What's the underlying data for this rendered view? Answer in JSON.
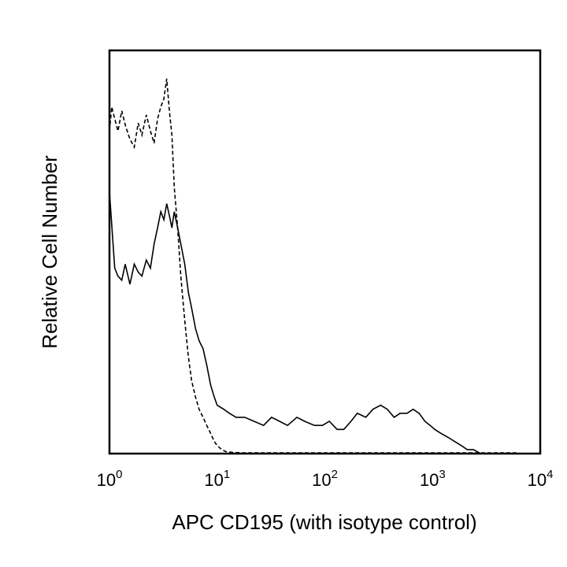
{
  "chart_data": {
    "type": "line",
    "title": "",
    "xlabel": "APC CD195 (with isotype control)",
    "ylabel": "Relative Cell Number",
    "x_scale": "log",
    "xlim": [
      1,
      10000
    ],
    "ylim": [
      0,
      100
    ],
    "grid": false,
    "x_ticks": [
      {
        "base": "10",
        "exp": "0",
        "value": 1
      },
      {
        "base": "10",
        "exp": "1",
        "value": 10
      },
      {
        "base": "10",
        "exp": "2",
        "value": 100
      },
      {
        "base": "10",
        "exp": "3",
        "value": 1000
      },
      {
        "base": "10",
        "exp": "4",
        "value": 10000
      }
    ],
    "series": [
      {
        "style": "solid",
        "color": "#000000",
        "x": [
          1.0,
          1.06,
          1.12,
          1.2,
          1.3,
          1.4,
          1.55,
          1.7,
          1.85,
          2.0,
          2.2,
          2.4,
          2.6,
          2.8,
          3.0,
          3.2,
          3.4,
          3.6,
          3.8,
          4.0,
          4.3,
          4.6,
          5.0,
          5.4,
          5.8,
          6.3,
          6.8,
          7.4,
          8.0,
          8.7,
          9.4,
          10.0,
          11.5,
          13.0,
          15.0,
          18.0,
          22.0,
          27.0,
          32.0,
          38.0,
          45.0,
          55.0,
          65.0,
          80.0,
          95.0,
          110.0,
          130.0,
          150.0,
          175.0,
          200.0,
          240.0,
          280.0,
          330.0,
          380.0,
          440.0,
          500.0,
          580.0,
          660.0,
          750.0,
          850.0,
          950.0,
          1050.0,
          1200.0,
          1400.0,
          1600.0,
          1850.0,
          2100.0,
          2400.0,
          2800.0,
          3500.0
        ],
        "y": [
          65,
          55,
          46,
          44,
          43,
          47,
          42,
          47,
          45,
          44,
          48,
          46,
          52,
          56,
          60,
          58,
          62,
          59,
          56,
          60,
          56,
          52,
          47,
          40,
          36,
          31,
          28,
          26,
          22,
          17,
          14,
          12,
          11,
          10,
          9,
          9,
          8,
          7,
          9,
          8,
          7,
          9,
          8,
          7,
          7,
          8,
          6,
          6,
          8,
          10,
          9,
          11,
          12,
          11,
          9,
          10,
          10,
          11,
          10,
          8,
          7,
          6,
          5,
          4,
          3,
          2,
          1,
          1,
          0,
          0
        ]
      },
      {
        "style": "dashed",
        "color": "#000000",
        "x": [
          1.0,
          1.05,
          1.12,
          1.2,
          1.3,
          1.42,
          1.55,
          1.7,
          1.85,
          2.0,
          2.2,
          2.4,
          2.6,
          2.8,
          3.0,
          3.2,
          3.4,
          3.6,
          3.8,
          4.0,
          4.3,
          4.6,
          5.0,
          5.4,
          5.8,
          6.3,
          6.8,
          7.4,
          8.0,
          8.7,
          9.4,
          10.0,
          11.0,
          12.0,
          14.0,
          17.0,
          22.0,
          30.0,
          45.0,
          70.0,
          110.0,
          200.0,
          400.0,
          800.0,
          1500.0,
          3000.0,
          6000.0
        ],
        "y": [
          80,
          86,
          83,
          80,
          85,
          81,
          78,
          76,
          82,
          79,
          84,
          80,
          77,
          83,
          86,
          88,
          93,
          85,
          79,
          66,
          56,
          44,
          33,
          24,
          18,
          14,
          11,
          9,
          7,
          5,
          3,
          2,
          1,
          0.5,
          0.3,
          0.2,
          0.2,
          0.2,
          0.2,
          0.2,
          0.2,
          0.2,
          0.2,
          0.2,
          0.2,
          0.2,
          0.2
        ]
      }
    ]
  }
}
